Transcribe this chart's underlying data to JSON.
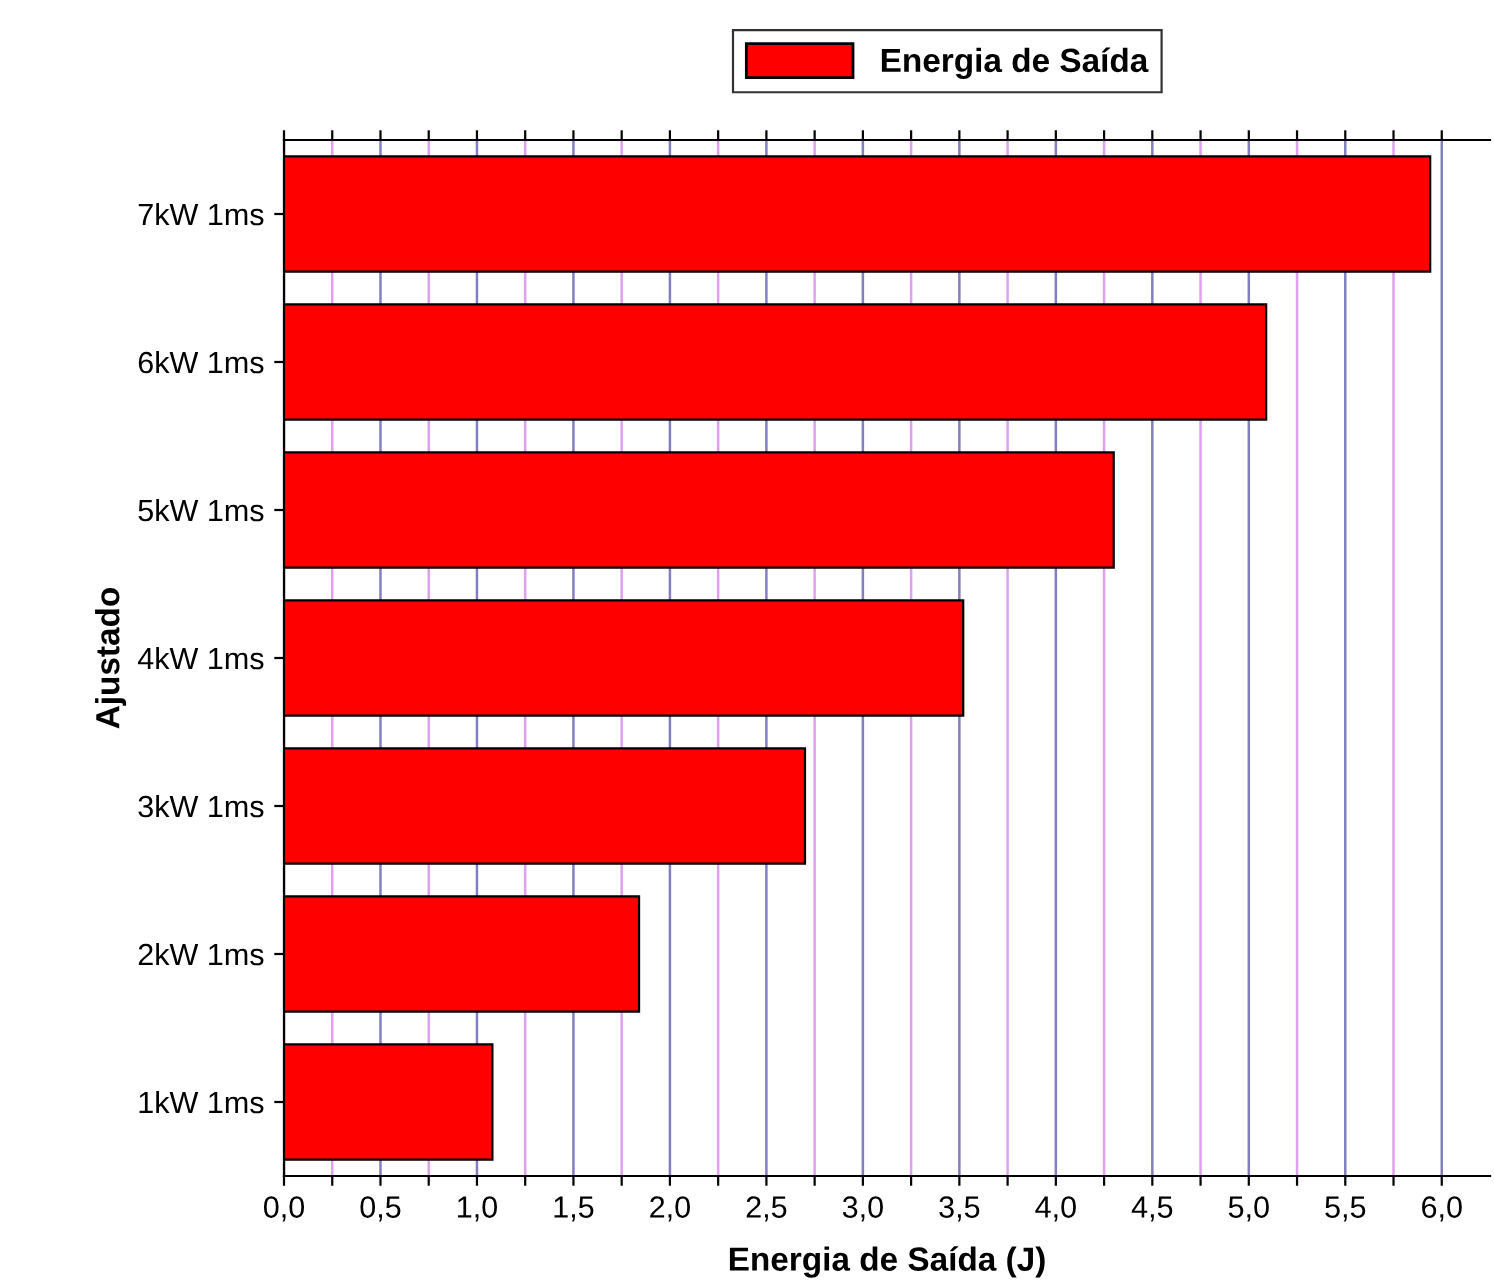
{
  "chart_data": {
    "type": "bar",
    "orientation": "horizontal",
    "xlabel": "Energia de Saída (J)",
    "ylabel": "Ajustado",
    "categories": [
      "7kW 1ms",
      "6kW 1ms",
      "5kW 1ms",
      "4kW 1ms",
      "3kW 1ms",
      "2kW 1ms",
      "1kW 1ms"
    ],
    "series": [
      {
        "name": "Energia de Saída",
        "color": "#ff0000",
        "values": [
          5.94,
          5.09,
          4.3,
          3.52,
          2.7,
          1.84,
          1.08
        ]
      }
    ],
    "xlim": [
      0,
      6.25
    ],
    "xticks": [
      {
        "value": 0,
        "label": "0,0"
      },
      {
        "value": 0.25,
        "label": null
      },
      {
        "value": 0.5,
        "label": "0,5"
      },
      {
        "value": 0.75,
        "label": null
      },
      {
        "value": 1.0,
        "label": "1,0"
      },
      {
        "value": 1.25,
        "label": null
      },
      {
        "value": 1.5,
        "label": "1,5"
      },
      {
        "value": 1.75,
        "label": null
      },
      {
        "value": 2.0,
        "label": "2,0"
      },
      {
        "value": 2.25,
        "label": null
      },
      {
        "value": 2.5,
        "label": "2,5"
      },
      {
        "value": 2.75,
        "label": null
      },
      {
        "value": 3.0,
        "label": "3,0"
      },
      {
        "value": 3.25,
        "label": null
      },
      {
        "value": 3.5,
        "label": "3,5"
      },
      {
        "value": 3.75,
        "label": null
      },
      {
        "value": 4.0,
        "label": "4,0"
      },
      {
        "value": 4.25,
        "label": null
      },
      {
        "value": 4.5,
        "label": "4,5"
      },
      {
        "value": 4.75,
        "label": null
      },
      {
        "value": 5.0,
        "label": "5,0"
      },
      {
        "value": 5.25,
        "label": null
      },
      {
        "value": 5.5,
        "label": "5,5"
      },
      {
        "value": 5.75,
        "label": null
      },
      {
        "value": 6.0,
        "label": "6,0"
      }
    ],
    "grid": "x",
    "legend": "top"
  }
}
